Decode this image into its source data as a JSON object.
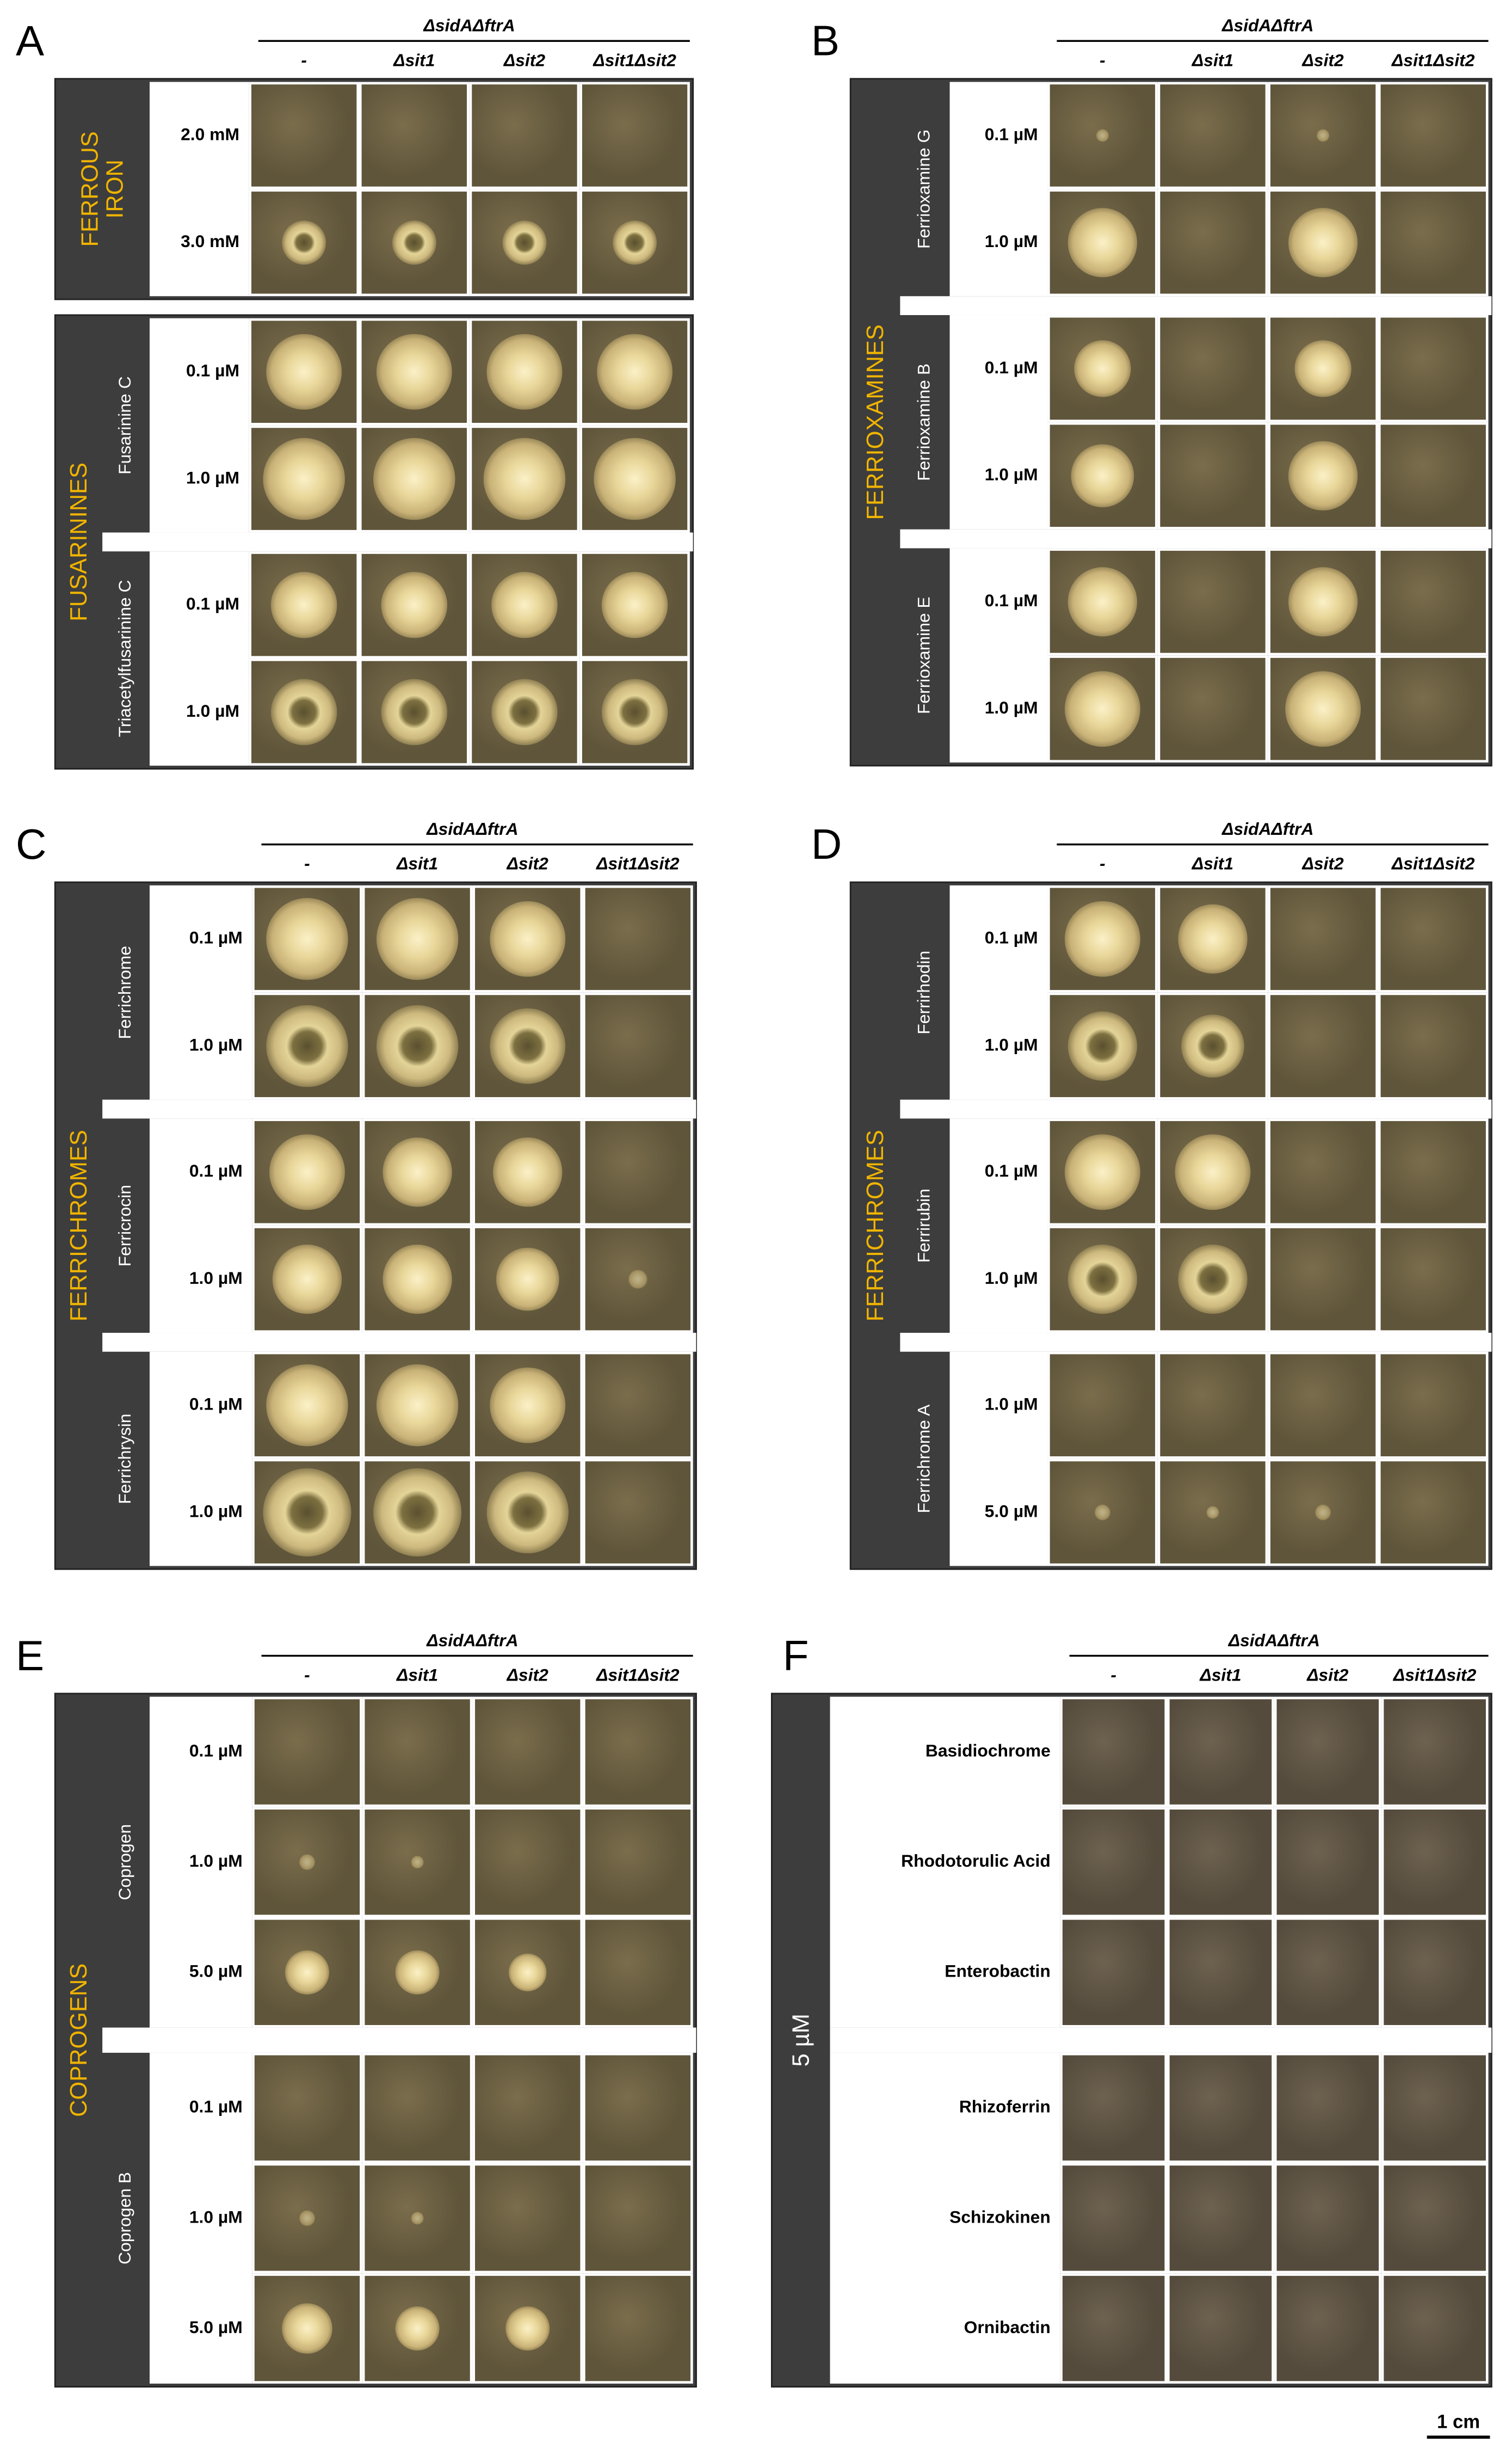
{
  "panels": [
    {
      "letter": "A",
      "header": "ΔsidAΔftrA",
      "columns": [
        "-",
        "Δsit1",
        "Δsit2",
        "Δsit1Δsit2"
      ],
      "boxes": [
        {
          "title": [
            "FERROUS",
            "IRON"
          ],
          "title_color": "#f0b400",
          "groups": [
            {
              "rows": [
                "2.0 mM",
                "3.0 mM"
              ]
            }
          ]
        },
        {
          "title": [
            "FUSARININES"
          ],
          "title_color": "#f0b400",
          "groups": [
            {
              "name": "Fusarinine C",
              "rows": [
                "0.1 µM",
                "1.0 µM"
              ]
            },
            {
              "name": "Triacetylfusarinine C",
              "rows": [
                "0.1 µM",
                "1.0 µM"
              ]
            }
          ]
        }
      ]
    },
    {
      "letter": "B",
      "header": "ΔsidAΔftrA",
      "columns": [
        "-",
        "Δsit1",
        "Δsit2",
        "Δsit1Δsit2"
      ],
      "boxes": [
        {
          "title": [
            "FERRIOXAMINES"
          ],
          "title_color": "#f0b400",
          "groups": [
            {
              "name": "Ferrioxamine G",
              "rows": [
                "0.1 µM",
                "1.0 µM"
              ]
            },
            {
              "name": "Ferrioxamine B",
              "rows": [
                "0.1 µM",
                "1.0 µM"
              ]
            },
            {
              "name": "Ferrioxamine E",
              "rows": [
                "0.1 µM",
                "1.0 µM"
              ]
            }
          ]
        }
      ]
    },
    {
      "letter": "C",
      "header": "ΔsidAΔftrA",
      "columns": [
        "-",
        "Δsit1",
        "Δsit2",
        "Δsit1Δsit2"
      ],
      "boxes": [
        {
          "title": [
            "FERRICHROMES"
          ],
          "title_color": "#f0b400",
          "groups": [
            {
              "name": "Ferrichrome",
              "rows": [
                "0.1 µM",
                "1.0 µM"
              ]
            },
            {
              "name": "Ferricrocin",
              "rows": [
                "0.1 µM",
                "1.0 µM"
              ]
            },
            {
              "name": "Ferrichrysin",
              "rows": [
                "0.1 µM",
                "1.0 µM"
              ]
            }
          ]
        }
      ]
    },
    {
      "letter": "D",
      "header": "ΔsidAΔftrA",
      "columns": [
        "-",
        "Δsit1",
        "Δsit2",
        "Δsit1Δsit2"
      ],
      "boxes": [
        {
          "title": [
            "FERRICHROMES"
          ],
          "title_color": "#f0b400",
          "groups": [
            {
              "name": "Ferrirhodin",
              "rows": [
                "0.1 µM",
                "1.0 µM"
              ]
            },
            {
              "name": "Ferrirubin",
              "rows": [
                "0.1 µM",
                "1.0 µM"
              ]
            },
            {
              "name": "Ferrichrome A",
              "rows": [
                "1.0 µM",
                "5.0 µM"
              ]
            }
          ]
        }
      ]
    },
    {
      "letter": "E",
      "header": "ΔsidAΔftrA",
      "columns": [
        "-",
        "Δsit1",
        "Δsit2",
        "Δsit1Δsit2"
      ],
      "boxes": [
        {
          "title": [
            "COPROGENS"
          ],
          "title_color": "#f0b400",
          "groups": [
            {
              "name": "Coprogen",
              "rows": [
                "0.1 µM",
                "1.0 µM",
                "5.0 µM"
              ]
            },
            {
              "name": "Coprogen B",
              "rows": [
                "0.1 µM",
                "1.0 µM",
                "5.0 µM"
              ]
            }
          ]
        }
      ]
    },
    {
      "letter": "F",
      "header": "ΔsidAΔftrA",
      "columns": [
        "-",
        "Δsit1",
        "Δsit2",
        "Δsit1Δsit2"
      ],
      "boxes": [
        {
          "title": [
            "5 µM"
          ],
          "title_color": "#ffffff",
          "groups": [
            {
              "rows": [
                "Basidiochrome",
                "Rhodotorulic Acid",
                "Enterobactin"
              ]
            },
            {
              "rows": [
                "Rhizoferrin",
                "Schizokinen",
                "Ornibactin"
              ]
            }
          ]
        }
      ]
    }
  ],
  "scale_bar": "1 cm"
}
